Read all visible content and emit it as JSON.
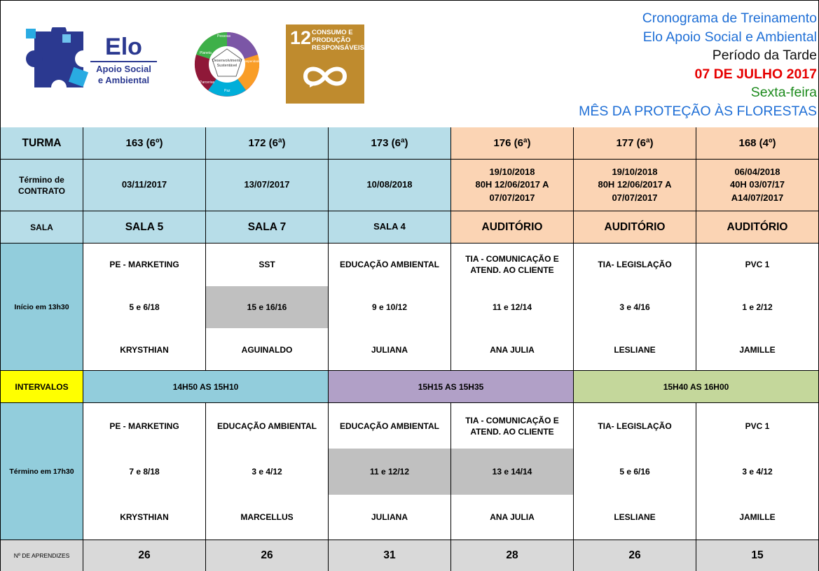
{
  "header": {
    "elo_logo": {
      "brand": "Elo",
      "line1": "Apoio Social",
      "line2": "e Ambiental"
    },
    "ods_logo": {
      "center": "Desenvolvimento Sustentável",
      "sections": [
        "Pessoas",
        "Prosperidade",
        "Paz",
        "Parcerias",
        "Planeta"
      ]
    },
    "sdg12": {
      "number": "12",
      "text": "Consumo e produção responsáveis"
    },
    "lines": [
      "Cronograma de Treinamento",
      "Elo Apoio Social e Ambiental",
      "Período da Tarde",
      "07 DE JULHO 2017",
      "Sexta-feira",
      "MÊS DA PROTEÇÃO ÀS FLORESTAS"
    ]
  },
  "row_labels": {
    "turma": "TURMA",
    "termino_contrato": "Término de CONTRATO",
    "sala": "SALA",
    "inicio": "Início em 13h30",
    "intervalos": "INTERVALOS",
    "termino": "Término em 17h30",
    "aprendizes": "Nº DE APRENDIZES"
  },
  "turmas": [
    {
      "turma": "163 (6º)",
      "contrato": [
        "03/11/2017"
      ],
      "sala": "SALA 5",
      "inicio": {
        "materia": "PE - MARKETING",
        "aulas": "5 e 6/18",
        "instrutor": "KRYSTHIAN",
        "shaded": false
      },
      "termino": {
        "materia": "PE - MARKETING",
        "aulas": "7 e 8/18",
        "instrutor": "KRYSTHIAN",
        "shaded": false
      },
      "aprendizes": "26"
    },
    {
      "turma": "172 (6ª)",
      "contrato": [
        "13/07/2017"
      ],
      "sala": "SALA 7",
      "inicio": {
        "materia": "SST",
        "aulas": "15 e 16/16",
        "instrutor": "AGUINALDO",
        "shaded": true
      },
      "termino": {
        "materia": "EDUCAÇÃO AMBIENTAL",
        "aulas": "3 e 4/12",
        "instrutor": "MARCELLUS",
        "shaded": false
      },
      "aprendizes": "26"
    },
    {
      "turma": "173 (6ª)",
      "contrato": [
        "10/08/2018"
      ],
      "sala": "SALA 4",
      "inicio": {
        "materia": "EDUCAÇÃO AMBIENTAL",
        "aulas": "9 e 10/12",
        "instrutor": "JULIANA",
        "shaded": false
      },
      "termino": {
        "materia": "EDUCAÇÃO AMBIENTAL",
        "aulas": "11 e 12/12",
        "instrutor": "JULIANA",
        "shaded": true
      },
      "aprendizes": "31"
    },
    {
      "turma": "176 (6ª)",
      "contrato": [
        "19/10/2018",
        "80H 12/06/2017 A",
        "07/07/2017"
      ],
      "sala": "AUDITÓRIO",
      "inicio": {
        "materia": "TIA - COMUNICAÇÃO E ATEND. AO CLIENTE",
        "aulas": "11 e 12/14",
        "instrutor": "ANA JULIA",
        "shaded": false
      },
      "termino": {
        "materia": "TIA - COMUNICAÇÃO E ATEND. AO CLIENTE",
        "aulas": "13 e 14/14",
        "instrutor": "ANA JULIA",
        "shaded": true
      },
      "aprendizes": "28"
    },
    {
      "turma": "177 (6ª)",
      "contrato": [
        "19/10/2018",
        "80H 12/06/2017 A",
        "07/07/2017"
      ],
      "sala": "AUDITÓRIO",
      "inicio": {
        "materia": "TIA- LEGISLAÇÃO",
        "aulas": "3 e 4/16",
        "instrutor": "LESLIANE",
        "shaded": false
      },
      "termino": {
        "materia": "TIA- LEGISLAÇÃO",
        "aulas": "5 e 6/16",
        "instrutor": "LESLIANE",
        "shaded": false
      },
      "aprendizes": "26"
    },
    {
      "turma": "168 (4º)",
      "contrato": [
        "06/04/2018",
        "40H 03/07/17",
        "A14/07/2017"
      ],
      "sala": "AUDITÓRIO",
      "inicio": {
        "materia": "PVC 1",
        "aulas": "1 e 2/12",
        "instrutor": "JAMILLE",
        "shaded": false
      },
      "termino": {
        "materia": "PVC 1",
        "aulas": "3 e 4/12",
        "instrutor": "JAMILLE",
        "shaded": false
      },
      "aprendizes": "15"
    }
  ],
  "intervalos": [
    "14H50 AS 15H10",
    "15H15 AS 15H35",
    "15H40 AS 16H00"
  ],
  "colors": {
    "header_blue": "#b7dde8",
    "header_orange": "#fbd4b4",
    "intervalos_label": "#ffff00",
    "intervalo_1": "#92cddc",
    "intervalo_2": "#b1a0c7",
    "intervalo_3": "#c4d79b",
    "aprendizes_row": "#d9d9d9",
    "sdg12": "#bf8b2e"
  }
}
